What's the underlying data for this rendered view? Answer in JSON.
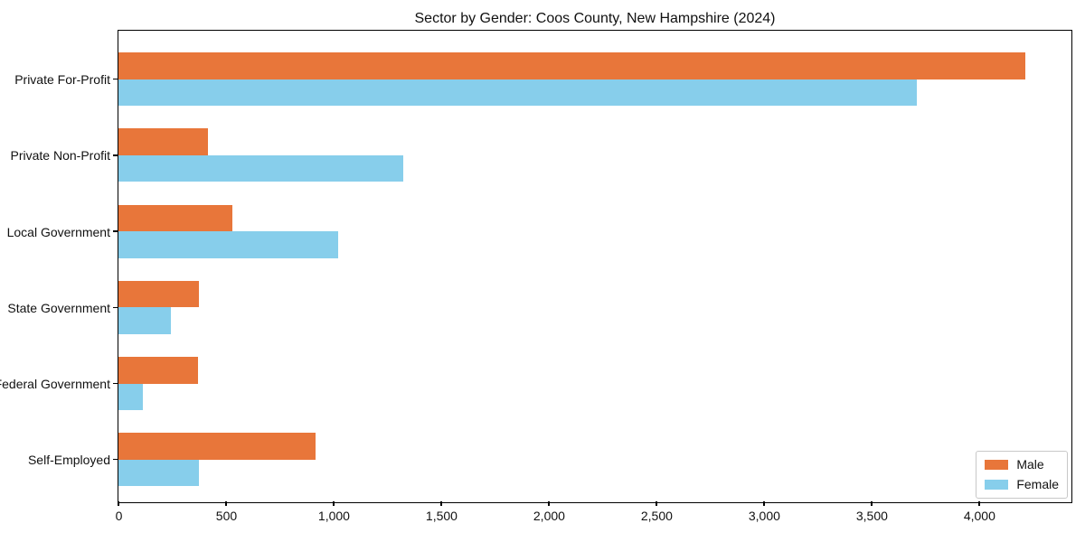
{
  "chart_data": {
    "type": "bar",
    "orientation": "horizontal",
    "title": "Sector by Gender: Coos County, New Hampshire (2024)",
    "categories": [
      "Private For-Profit",
      "Private Non-Profit",
      "Local Government",
      "State Government",
      "Federal Government",
      "Self-Employed"
    ],
    "series": [
      {
        "name": "Male",
        "color": "#e8763a",
        "values": [
          4215,
          415,
          530,
          375,
          370,
          915
        ]
      },
      {
        "name": "Female",
        "color": "#87ceeb",
        "values": [
          3710,
          1325,
          1020,
          245,
          115,
          375
        ]
      }
    ],
    "xlabel": "",
    "ylabel": "",
    "xlim": [
      0,
      4425
    ],
    "xticks": [
      0,
      500,
      1000,
      1500,
      2000,
      2500,
      3000,
      3500,
      4000
    ],
    "xtick_labels": [
      "0",
      "500",
      "1,000",
      "1,500",
      "2,000",
      "2,500",
      "3,000",
      "3,500",
      "4,000"
    ],
    "grid": false,
    "legend": {
      "position": "lower right"
    }
  }
}
